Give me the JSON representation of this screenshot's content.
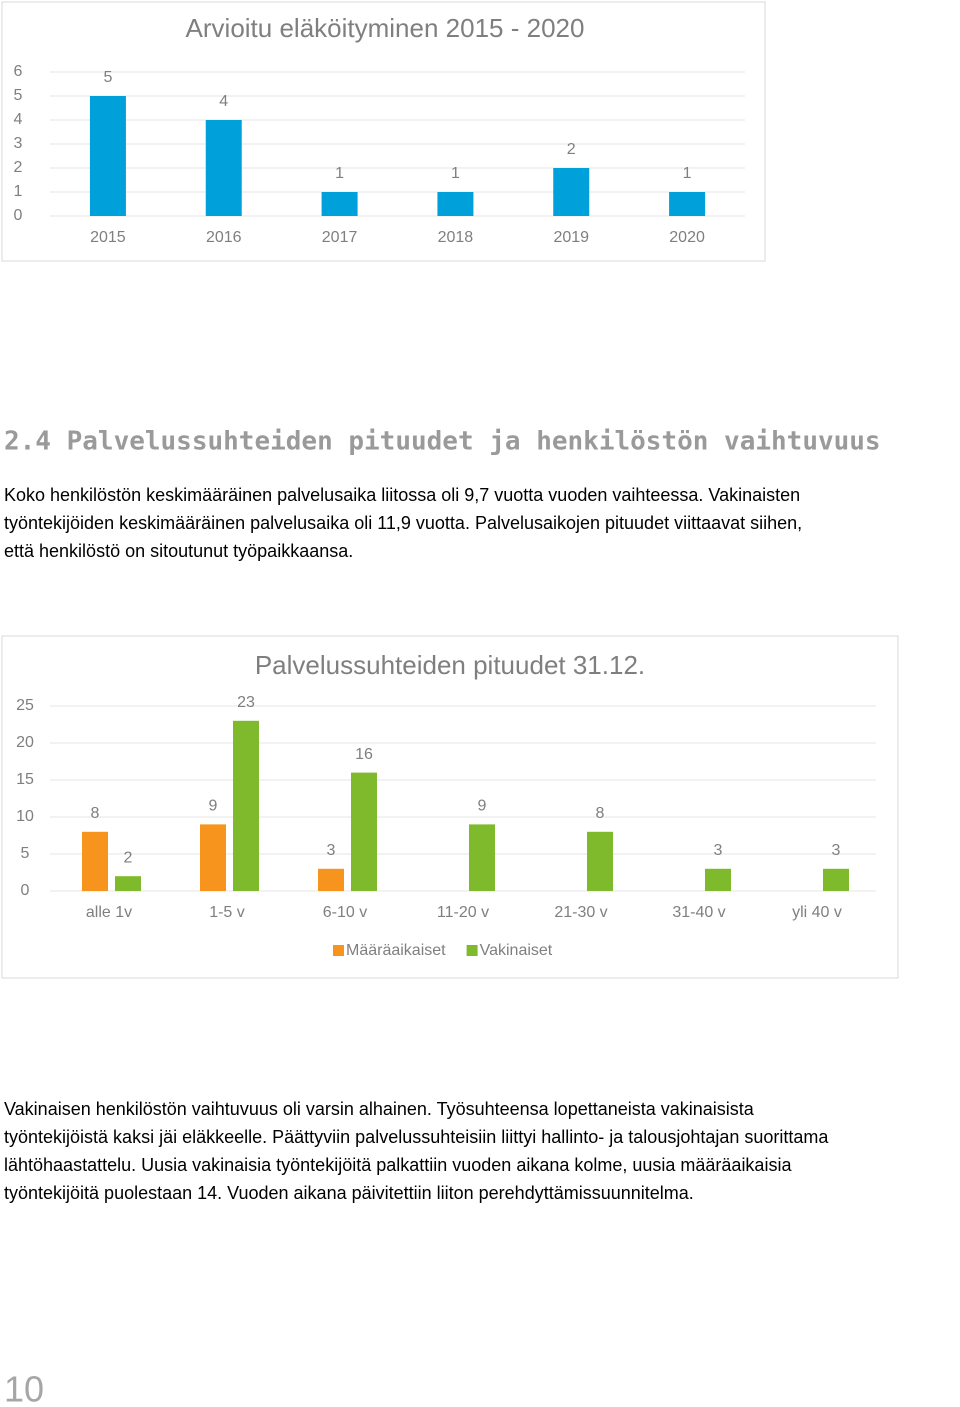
{
  "chart_data": [
    {
      "type": "bar",
      "title": "Arvioitu eläköityminen 2015 - 2020",
      "categories": [
        "2015",
        "2016",
        "2017",
        "2018",
        "2019",
        "2020"
      ],
      "series": [
        {
          "name": null,
          "color": "#00a1da",
          "values": [
            5,
            4,
            1,
            1,
            2,
            1
          ]
        }
      ],
      "ylim": [
        0,
        6
      ],
      "yticks": [
        0,
        1,
        2,
        3,
        4,
        5,
        6
      ],
      "grid": true,
      "legend": false
    },
    {
      "type": "bar",
      "title": "Palvelussuhteiden pituudet 31.12.",
      "categories": [
        "alle 1v",
        "1-5 v",
        "6-10 v",
        "11-20 v",
        "21-30 v",
        "31-40 v",
        "yli 40 v"
      ],
      "series": [
        {
          "name": "Määräaikaiset",
          "color": "#f7941d",
          "values": [
            8,
            9,
            3,
            null,
            null,
            null,
            null
          ]
        },
        {
          "name": "Vakinaiset",
          "color": "#7fba2c",
          "values": [
            2,
            23,
            16,
            9,
            8,
            3,
            3
          ]
        }
      ],
      "ylim": [
        0,
        25
      ],
      "yticks": [
        0,
        5,
        10,
        15,
        20,
        25
      ],
      "grid": true,
      "legend": "bottom"
    }
  ],
  "section": {
    "heading": "2.4 Palvelussuhteiden pituudet ja henkilöstön vaihtuvuus"
  },
  "paragraphs": [
    [
      "Koko henkilöstön keskimääräinen palvelusaika liitossa oli 9,7 vuotta vuoden vaihteessa. Vakinaisten",
      "työntekijöiden keskimääräinen palvelusaika oli 11,9 vuotta. Palvelusaikojen pituudet viittaavat siihen,",
      "että henkilöstö on sitoutunut työpaikkaansa."
    ],
    [
      "Vakinaisen henkilöstön vaihtuvuus oli varsin alhainen. Työsuhteensa lopettaneista vakinaisista",
      "työntekijöistä kaksi jäi eläkkeelle. Päättyviin palvelussuhteisiin liittyi hallinto- ja talousjohtajan suorittama",
      "lähtöhaastattelu. Uusia vakinaisia työntekijöitä palkattiin vuoden aikana kolme, uusia määräaikaisia",
      "työntekijöitä puolestaan 14. Vuoden aikana päivitettiin liiton perehdyttämissuunnitelma."
    ]
  ],
  "page_number": "10"
}
